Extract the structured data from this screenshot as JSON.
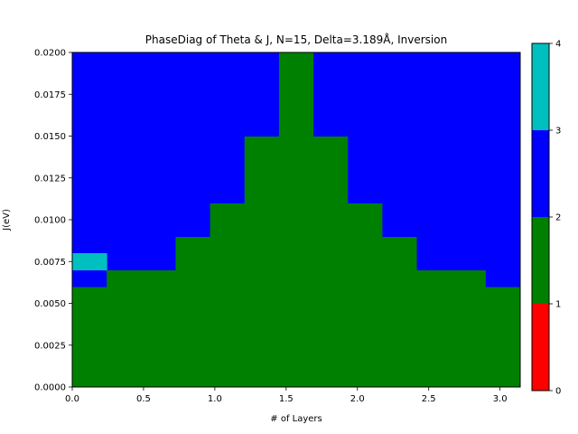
{
  "chart_data": {
    "type": "heatmap",
    "title": "PhaseDiag of Theta & J, N=15, Delta=3.189Å, Inversion",
    "xlabel": "# of Layers",
    "ylabel": "J(eV)",
    "xlim": [
      0.0,
      3.1416
    ],
    "ylim": [
      0.0,
      0.02
    ],
    "xticks": [
      "0.0",
      "0.5",
      "1.0",
      "1.5",
      "2.0",
      "2.5",
      "3.0"
    ],
    "xtick_values": [
      0.0,
      0.5,
      1.0,
      1.5,
      2.0,
      2.5,
      3.0
    ],
    "yticks": [
      "0.0000",
      "0.0025",
      "0.0050",
      "0.0075",
      "0.0100",
      "0.0125",
      "0.0150",
      "0.0175",
      "0.0200"
    ],
    "ytick_values": [
      0.0,
      0.0025,
      0.005,
      0.0075,
      0.01,
      0.0125,
      0.015,
      0.0175,
      0.02
    ],
    "n_cols": 13,
    "n_rows": 20,
    "green_top_row_per_column": [
      6,
      7,
      7,
      9,
      11,
      15,
      20,
      15,
      11,
      9,
      7,
      7,
      6
    ],
    "cyan_cells": [
      {
        "col": 0,
        "row": 7
      }
    ],
    "class_colors": {
      "1": "#ff0000",
      "2": "#008000",
      "3": "#0000ff",
      "4": "#00bfbf"
    },
    "colorbar": {
      "range": [
        0,
        4
      ],
      "ticks": [
        "0",
        "1",
        "2",
        "3",
        "4"
      ],
      "tick_values": [
        0,
        1,
        2,
        3,
        4
      ],
      "bands": [
        {
          "from": 0,
          "to": 1,
          "color": "#ff0000"
        },
        {
          "from": 1,
          "to": 2,
          "color": "#008000"
        },
        {
          "from": 2,
          "to": 3,
          "color": "#0000ff"
        },
        {
          "from": 3,
          "to": 4,
          "color": "#00bfbf"
        }
      ]
    }
  }
}
